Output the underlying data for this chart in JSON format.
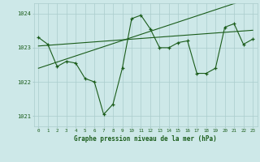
{
  "x": [
    0,
    1,
    2,
    3,
    4,
    5,
    6,
    7,
    8,
    9,
    10,
    11,
    12,
    13,
    14,
    15,
    16,
    17,
    18,
    19,
    20,
    21,
    22,
    23
  ],
  "pressure": [
    1023.3,
    1023.1,
    1022.45,
    1022.6,
    1022.55,
    1022.1,
    1022.0,
    1021.05,
    1021.35,
    1022.4,
    1023.85,
    1023.95,
    1023.55,
    1023.0,
    1023.0,
    1023.15,
    1023.2,
    1022.25,
    1022.25,
    1022.4,
    1023.6,
    1023.7,
    1023.1,
    1023.25
  ],
  "trend1": [
    1023.05,
    1023.07,
    1023.09,
    1023.11,
    1023.13,
    1023.15,
    1023.17,
    1023.19,
    1023.21,
    1023.23,
    1023.25,
    1023.27,
    1023.29,
    1023.31,
    1023.33,
    1023.35,
    1023.37,
    1023.39,
    1023.41,
    1023.43,
    1023.45,
    1023.47,
    1023.49,
    1023.51
  ],
  "trend2": [
    1022.4,
    1022.49,
    1022.58,
    1022.67,
    1022.76,
    1022.85,
    1022.94,
    1023.03,
    1023.12,
    1023.21,
    1023.3,
    1023.39,
    1023.48,
    1023.57,
    1023.66,
    1023.75,
    1023.84,
    1023.93,
    1024.02,
    1024.11,
    1024.2,
    1024.29,
    1024.38,
    1024.47
  ],
  "line_color": "#1a5c1a",
  "bg_color": "#cde8e8",
  "grid_color": "#aacccc",
  "tick_color": "#1a5c1a",
  "xlabel": "Graphe pression niveau de la mer (hPa)",
  "ylim": [
    1020.7,
    1024.3
  ],
  "yticks": [
    1021,
    1022,
    1023,
    1024
  ],
  "xticks": [
    0,
    1,
    2,
    3,
    4,
    5,
    6,
    7,
    8,
    9,
    10,
    11,
    12,
    13,
    14,
    15,
    16,
    17,
    18,
    19,
    20,
    21,
    22,
    23
  ]
}
